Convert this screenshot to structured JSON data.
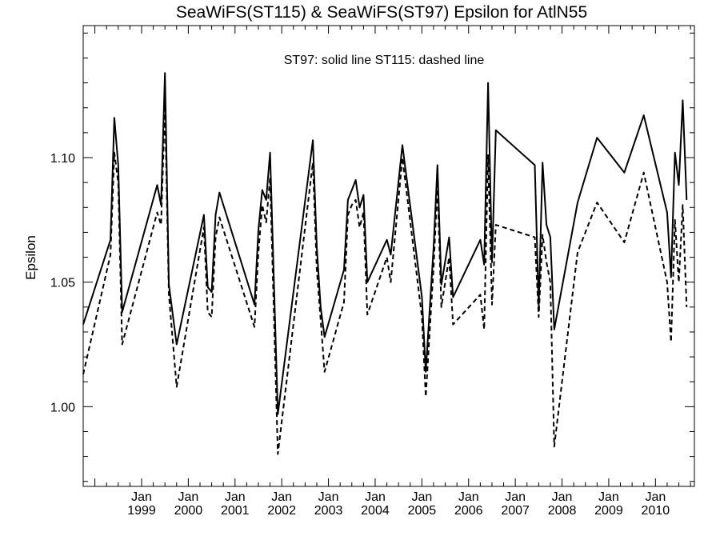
{
  "chart_data": {
    "type": "line",
    "title": "SeaWiFS(ST115) & SeaWiFS(ST97)  Epsilon for AtlN55",
    "annotation": "ST97: solid line   ST115: dashed line",
    "xlabel": "",
    "ylabel": "Epsilon",
    "x_tick_top_labels": [
      "Jan",
      "Jan",
      "Jan",
      "Jan",
      "Jan",
      "Jan",
      "Jan",
      "Jan",
      "Jan",
      "Jan",
      "Jan",
      "Jan"
    ],
    "x_tick_bottom_labels": [
      "1999",
      "2000",
      "2001",
      "2002",
      "2003",
      "2004",
      "2005",
      "2006",
      "2007",
      "2008",
      "2009",
      "2010"
    ],
    "y_tick_labels": [
      "1.00",
      "1.05",
      "1.10"
    ],
    "y_ticks": [
      1.0,
      1.05,
      1.1
    ],
    "xlim": [
      "1997-10-01",
      "2010-11-01"
    ],
    "ylim": [
      0.968,
      1.153
    ],
    "series": [
      {
        "name": "ST97",
        "style": "solid",
        "points": [
          [
            "1997-10-01",
            1.033
          ],
          [
            "1998-05-01",
            1.067
          ],
          [
            "1998-06-01",
            1.116
          ],
          [
            "1998-07-01",
            1.097
          ],
          [
            "1998-08-01",
            1.038
          ],
          [
            "1999-05-01",
            1.089
          ],
          [
            "1999-06-01",
            1.081
          ],
          [
            "1999-07-01",
            1.134
          ],
          [
            "1999-08-01",
            1.049
          ],
          [
            "1999-10-01",
            1.025
          ],
          [
            "2000-05-01",
            1.077
          ],
          [
            "2000-06-01",
            1.048
          ],
          [
            "2000-07-01",
            1.046
          ],
          [
            "2000-08-01",
            1.077
          ],
          [
            "2000-09-01",
            1.086
          ],
          [
            "2001-06-01",
            1.041
          ],
          [
            "2001-07-01",
            1.071
          ],
          [
            "2001-08-01",
            1.087
          ],
          [
            "2001-09-01",
            1.083
          ],
          [
            "2001-10-01",
            1.102
          ],
          [
            "2001-12-01",
            0.997
          ],
          [
            "2002-09-01",
            1.107
          ],
          [
            "2002-10-01",
            1.064
          ],
          [
            "2002-11-01",
            1.04
          ],
          [
            "2002-12-01",
            1.028
          ],
          [
            "2003-05-01",
            1.055
          ],
          [
            "2003-06-01",
            1.083
          ],
          [
            "2003-07-01",
            1.087
          ],
          [
            "2003-08-01",
            1.091
          ],
          [
            "2003-09-01",
            1.08
          ],
          [
            "2003-10-01",
            1.085
          ],
          [
            "2003-11-01",
            1.05
          ],
          [
            "2004-04-01",
            1.067
          ],
          [
            "2004-05-01",
            1.061
          ],
          [
            "2004-08-01",
            1.105
          ],
          [
            "2005-01-01",
            1.044
          ],
          [
            "2005-02-01",
            1.014
          ],
          [
            "2005-04-01",
            1.064
          ],
          [
            "2005-05-01",
            1.097
          ],
          [
            "2005-06-01",
            1.049
          ],
          [
            "2005-08-01",
            1.068
          ],
          [
            "2005-09-01",
            1.044
          ],
          [
            "2006-04-01",
            1.067
          ],
          [
            "2006-05-01",
            1.057
          ],
          [
            "2006-06-01",
            1.13
          ],
          [
            "2006-07-01",
            1.058
          ],
          [
            "2006-08-01",
            1.111
          ],
          [
            "2007-06-01",
            1.097
          ],
          [
            "2007-07-01",
            1.04
          ],
          [
            "2007-08-01",
            1.098
          ],
          [
            "2007-09-01",
            1.073
          ],
          [
            "2007-10-01",
            1.068
          ],
          [
            "2007-11-01",
            1.031
          ],
          [
            "2008-05-01",
            1.082
          ],
          [
            "2008-10-01",
            1.108
          ],
          [
            "2009-05-01",
            1.094
          ],
          [
            "2009-10-01",
            1.117
          ],
          [
            "2010-04-01",
            1.078
          ],
          [
            "2010-05-01",
            1.052
          ],
          [
            "2010-06-01",
            1.102
          ],
          [
            "2010-07-01",
            1.089
          ],
          [
            "2010-08-01",
            1.123
          ],
          [
            "2010-09-01",
            1.083
          ]
        ]
      },
      {
        "name": "ST115",
        "style": "dashed",
        "points": [
          [
            "1997-10-01",
            1.013
          ],
          [
            "1998-05-01",
            1.061
          ],
          [
            "1998-06-01",
            1.102
          ],
          [
            "1998-07-01",
            1.09
          ],
          [
            "1998-08-01",
            1.025
          ],
          [
            "1999-05-01",
            1.078
          ],
          [
            "1999-06-01",
            1.073
          ],
          [
            "1999-07-01",
            1.121
          ],
          [
            "1999-08-01",
            1.045
          ],
          [
            "1999-10-01",
            1.008
          ],
          [
            "2000-05-01",
            1.072
          ],
          [
            "2000-06-01",
            1.038
          ],
          [
            "2000-07-01",
            1.036
          ],
          [
            "2000-08-01",
            1.068
          ],
          [
            "2000-09-01",
            1.076
          ],
          [
            "2001-06-01",
            1.032
          ],
          [
            "2001-07-01",
            1.062
          ],
          [
            "2001-08-01",
            1.081
          ],
          [
            "2001-09-01",
            1.074
          ],
          [
            "2001-10-01",
            1.092
          ],
          [
            "2001-12-01",
            0.981
          ],
          [
            "2002-09-01",
            1.098
          ],
          [
            "2002-10-01",
            1.055
          ],
          [
            "2002-11-01",
            1.035
          ],
          [
            "2002-12-01",
            1.014
          ],
          [
            "2003-05-01",
            1.042
          ],
          [
            "2003-06-01",
            1.077
          ],
          [
            "2003-07-01",
            1.081
          ],
          [
            "2003-08-01",
            1.083
          ],
          [
            "2003-09-01",
            1.072
          ],
          [
            "2003-10-01",
            1.078
          ],
          [
            "2003-11-01",
            1.037
          ],
          [
            "2004-04-01",
            1.06
          ],
          [
            "2004-05-01",
            1.05
          ],
          [
            "2004-08-01",
            1.1
          ],
          [
            "2005-01-01",
            1.036
          ],
          [
            "2005-02-01",
            1.004
          ],
          [
            "2005-04-01",
            1.056
          ],
          [
            "2005-05-01",
            1.089
          ],
          [
            "2005-06-01",
            1.04
          ],
          [
            "2005-08-01",
            1.06
          ],
          [
            "2005-09-01",
            1.033
          ],
          [
            "2006-04-01",
            1.045
          ],
          [
            "2006-05-01",
            1.031
          ],
          [
            "2006-06-01",
            1.101
          ],
          [
            "2006-07-01",
            1.041
          ],
          [
            "2006-08-01",
            1.073
          ],
          [
            "2007-06-01",
            1.068
          ],
          [
            "2007-07-01",
            1.036
          ],
          [
            "2007-08-01",
            1.069
          ],
          [
            "2007-09-01",
            1.058
          ],
          [
            "2007-10-01",
            1.05
          ],
          [
            "2007-11-01",
            0.984
          ],
          [
            "2008-05-01",
            1.062
          ],
          [
            "2008-10-01",
            1.082
          ],
          [
            "2009-05-01",
            1.066
          ],
          [
            "2009-10-01",
            1.094
          ],
          [
            "2010-04-01",
            1.05
          ],
          [
            "2010-05-01",
            1.026
          ],
          [
            "2010-06-01",
            1.075
          ],
          [
            "2010-07-01",
            1.05
          ],
          [
            "2010-08-01",
            1.081
          ],
          [
            "2010-09-01",
            1.04
          ]
        ]
      }
    ],
    "grid": false,
    "legend": "none"
  }
}
